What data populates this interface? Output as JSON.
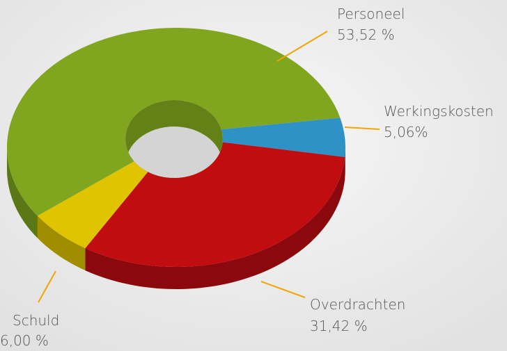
{
  "chart_data": {
    "type": "pie",
    "donut": true,
    "categories": [
      "Personeel",
      "Werkingskosten",
      "Overdrachten",
      "Schuld"
    ],
    "values": [
      53.52,
      5.06,
      31.42,
      6.0
    ],
    "value_labels": [
      "53,52 %",
      "5,06%",
      "31,42 %",
      "6,00 %"
    ],
    "colors": [
      "#7fa61e",
      "#2e92c6",
      "#c10c10",
      "#e0c400"
    ]
  }
}
